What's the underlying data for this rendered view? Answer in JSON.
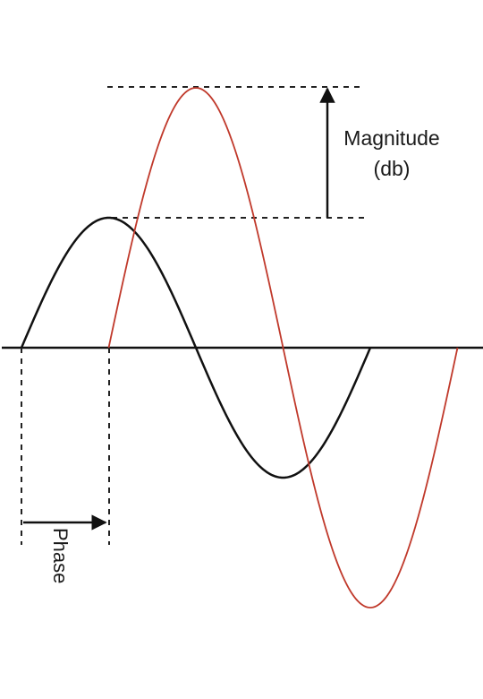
{
  "diagram": {
    "labels": {
      "magnitude_line1": "Magnitude",
      "magnitude_line2": "(db)",
      "phase": "Phase"
    },
    "colors": {
      "reference_wave": "#111111",
      "shifted_wave": "#c0392b",
      "axis": "#111111",
      "guides": "#222222",
      "background": "#ffffff"
    },
    "waves": [
      {
        "name": "",
        "color": "#111111",
        "relative_amplitude": 1.0,
        "phase_offset_fraction_of_period": 0
      },
      {
        "name": "",
        "color": "#c0392b",
        "relative_amplitude": 2.0,
        "phase_offset_fraction_of_period": 0.25
      }
    ]
  }
}
